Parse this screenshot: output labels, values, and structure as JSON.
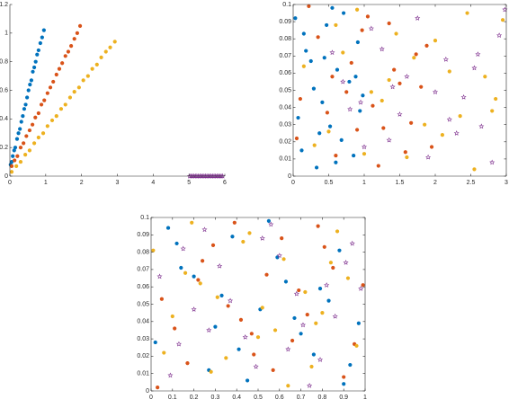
{
  "chart_data": [
    {
      "type": "scatter",
      "box": false,
      "xlim": [
        0,
        6
      ],
      "ylim": [
        0,
        1.2
      ],
      "xticks": [
        0,
        1,
        2,
        3,
        4,
        5,
        6
      ],
      "yticks": [
        0,
        0.2,
        0.4,
        0.6,
        0.8,
        1,
        1.2
      ],
      "series": [
        {
          "color": "#0072bd",
          "marker": "o",
          "x": [
            0.02,
            0.05,
            0.08,
            0.12,
            0.15,
            0.2,
            0.24,
            0.28,
            0.32,
            0.36,
            0.4,
            0.44,
            0.48,
            0.52,
            0.56,
            0.6,
            0.64,
            0.68,
            0.72,
            0.76,
            0.8,
            0.85,
            0.9,
            0.95
          ],
          "values": [
            0.08,
            0.1,
            0.14,
            0.18,
            0.2,
            0.26,
            0.3,
            0.33,
            0.38,
            0.42,
            0.47,
            0.5,
            0.55,
            0.6,
            0.64,
            0.67,
            0.73,
            0.76,
            0.8,
            0.85,
            0.88,
            0.93,
            0.97,
            1.02
          ]
        },
        {
          "color": "#d95319",
          "marker": "o",
          "x": [
            0.05,
            0.13,
            0.21,
            0.3,
            0.38,
            0.46,
            0.55,
            0.63,
            0.71,
            0.8,
            0.88,
            0.96,
            1.05,
            1.13,
            1.21,
            1.3,
            1.38,
            1.46,
            1.55,
            1.63,
            1.71,
            1.8,
            1.88,
            1.96
          ],
          "values": [
            0.07,
            0.11,
            0.14,
            0.2,
            0.23,
            0.28,
            0.32,
            0.36,
            0.41,
            0.44,
            0.5,
            0.53,
            0.58,
            0.62,
            0.66,
            0.71,
            0.75,
            0.79,
            0.84,
            0.87,
            0.91,
            0.96,
            1.0,
            1.05
          ]
        },
        {
          "color": "#edb120",
          "marker": "o",
          "x": [
            0.05,
            0.18,
            0.3,
            0.43,
            0.55,
            0.68,
            0.8,
            0.93,
            1.05,
            1.18,
            1.3,
            1.43,
            1.55,
            1.68,
            1.8,
            1.93,
            2.05,
            2.18,
            2.3,
            2.43,
            2.55,
            2.68,
            2.8,
            2.93
          ],
          "values": [
            0.03,
            0.07,
            0.1,
            0.15,
            0.18,
            0.23,
            0.27,
            0.3,
            0.35,
            0.39,
            0.42,
            0.47,
            0.5,
            0.55,
            0.59,
            0.62,
            0.67,
            0.7,
            0.75,
            0.78,
            0.83,
            0.87,
            0.9,
            0.94
          ]
        },
        {
          "color": "#7e2f8e",
          "marker": "*",
          "x": [
            5.02,
            5.06,
            5.1,
            5.14,
            5.18,
            5.22,
            5.26,
            5.3,
            5.34,
            5.38,
            5.42,
            5.46,
            5.5,
            5.54,
            5.58,
            5.62,
            5.66,
            5.7,
            5.74,
            5.78,
            5.82,
            5.86,
            5.9,
            5.94
          ],
          "values": [
            0,
            0,
            0,
            0,
            0,
            0,
            0,
            0,
            0,
            0,
            0,
            0,
            0,
            0,
            0,
            0,
            0,
            0,
            0,
            0,
            0,
            0,
            0,
            0
          ]
        }
      ]
    },
    {
      "type": "scatter",
      "box": true,
      "xlim": [
        0,
        3
      ],
      "ylim": [
        0,
        0.1
      ],
      "xticks": [
        0,
        0.5,
        1,
        1.5,
        2,
        2.5,
        3
      ],
      "yticks": [
        0,
        0.01,
        0.02,
        0.03,
        0.04,
        0.05,
        0.06,
        0.07,
        0.08,
        0.09,
        0.1
      ],
      "series": [
        {
          "color": "#0072bd",
          "marker": "o",
          "x": [
            0.03,
            0.12,
            0.25,
            0.41,
            0.55,
            0.68,
            0.79,
            0.91,
            0.07,
            0.33,
            0.47,
            0.62,
            0.85,
            0.98,
            0.18,
            0.52,
            0.71,
            0.29,
            0.94,
            0.44,
            0.6,
            0.15,
            0.88,
            0.37
          ],
          "values": [
            0.092,
            0.015,
            0.067,
            0.043,
            0.098,
            0.021,
            0.055,
            0.078,
            0.034,
            0.005,
            0.088,
            0.062,
            0.012,
            0.047,
            0.073,
            0.029,
            0.095,
            0.051,
            0.038,
            0.069,
            0.008,
            0.083,
            0.058,
            0.025
          ]
        },
        {
          "color": "#d95319",
          "marker": "o",
          "x": [
            0.1,
            0.35,
            0.6,
            0.82,
            1.05,
            1.27,
            1.5,
            1.73,
            1.95,
            0.22,
            0.48,
            0.75,
            0.97,
            1.2,
            1.42,
            1.66,
            1.88,
            0.05,
            0.55,
            1.12,
            1.35,
            1.58,
            0.9,
            1.8
          ],
          "values": [
            0.045,
            0.081,
            0.012,
            0.066,
            0.093,
            0.028,
            0.054,
            0.071,
            0.017,
            0.099,
            0.037,
            0.049,
            0.085,
            0.006,
            0.062,
            0.031,
            0.076,
            0.022,
            0.058,
            0.041,
            0.089,
            0.014,
            0.027,
            0.052
          ]
        },
        {
          "color": "#edb120",
          "marker": "o",
          "x": [
            0.15,
            0.5,
            0.9,
            1.25,
            1.6,
            2.0,
            2.35,
            2.7,
            2.95,
            0.3,
            0.7,
            1.1,
            1.45,
            1.85,
            2.2,
            2.55,
            2.85,
            0.6,
            1.0,
            1.7,
            2.1,
            2.45,
            2.8,
            1.35
          ],
          "values": [
            0.064,
            0.026,
            0.097,
            0.044,
            0.011,
            0.079,
            0.035,
            0.058,
            0.091,
            0.018,
            0.072,
            0.049,
            0.083,
            0.03,
            0.061,
            0.004,
            0.045,
            0.088,
            0.013,
            0.069,
            0.024,
            0.095,
            0.038,
            0.056
          ]
        },
        {
          "color": "#7e2f8e",
          "marker": "*",
          "x": [
            0.55,
            0.8,
            1.1,
            1.35,
            1.6,
            1.9,
            2.15,
            2.4,
            2.65,
            2.9,
            0.7,
            1.0,
            1.25,
            1.5,
            1.75,
            2.0,
            2.3,
            2.55,
            2.8,
            2.98,
            1.4,
            2.2,
            2.6,
            0.95
          ],
          "values": [
            0.072,
            0.039,
            0.086,
            0.021,
            0.058,
            0.011,
            0.068,
            0.046,
            0.029,
            0.082,
            0.055,
            0.017,
            0.074,
            0.036,
            0.092,
            0.049,
            0.025,
            0.063,
            0.008,
            0.097,
            0.052,
            0.033,
            0.071,
            0.043
          ]
        }
      ]
    },
    {
      "type": "scatter",
      "box": true,
      "xlim": [
        0,
        1
      ],
      "ylim": [
        0,
        0.1
      ],
      "xticks": [
        0,
        0.1,
        0.2,
        0.3,
        0.4,
        0.5,
        0.6,
        0.7,
        0.8,
        0.9,
        1
      ],
      "yticks": [
        0,
        0.01,
        0.02,
        0.03,
        0.04,
        0.05,
        0.06,
        0.07,
        0.08,
        0.09,
        0.1
      ],
      "series": [
        {
          "color": "#0072bd",
          "marker": "o",
          "x": [
            0.02,
            0.14,
            0.27,
            0.38,
            0.51,
            0.63,
            0.76,
            0.88,
            0.97,
            0.08,
            0.33,
            0.45,
            0.59,
            0.7,
            0.83,
            0.93,
            0.2,
            0.55,
            0.67,
            0.41,
            0.12,
            0.79,
            0.9,
            0.3
          ],
          "values": [
            0.028,
            0.071,
            0.012,
            0.089,
            0.047,
            0.063,
            0.021,
            0.081,
            0.039,
            0.094,
            0.055,
            0.006,
            0.077,
            0.033,
            0.052,
            0.015,
            0.066,
            0.098,
            0.042,
            0.024,
            0.085,
            0.059,
            0.004,
            0.037
          ]
        },
        {
          "color": "#d95319",
          "marker": "o",
          "x": [
            0.05,
            0.17,
            0.29,
            0.42,
            0.54,
            0.66,
            0.78,
            0.9,
            0.99,
            0.11,
            0.24,
            0.36,
            0.48,
            0.61,
            0.73,
            0.85,
            0.95,
            0.39,
            0.57,
            0.69,
            0.81,
            0.22,
            0.47,
            0.03
          ],
          "values": [
            0.053,
            0.016,
            0.084,
            0.041,
            0.067,
            0.029,
            0.095,
            0.008,
            0.061,
            0.036,
            0.075,
            0.049,
            0.021,
            0.088,
            0.044,
            0.071,
            0.027,
            0.097,
            0.012,
            0.058,
            0.083,
            0.064,
            0.033,
            0.002
          ]
        },
        {
          "color": "#edb120",
          "marker": "o",
          "x": [
            0.01,
            0.1,
            0.23,
            0.35,
            0.46,
            0.58,
            0.72,
            0.84,
            0.96,
            0.16,
            0.28,
            0.43,
            0.52,
            0.64,
            0.77,
            0.87,
            0.06,
            0.31,
            0.62,
            0.75,
            0.92,
            0.5,
            0.19,
            0.8
          ],
          "values": [
            0.081,
            0.043,
            0.062,
            0.019,
            0.091,
            0.035,
            0.057,
            0.074,
            0.026,
            0.068,
            0.011,
            0.086,
            0.048,
            0.003,
            0.039,
            0.092,
            0.022,
            0.054,
            0.076,
            0.014,
            0.065,
            0.031,
            0.097,
            0.045
          ]
        },
        {
          "color": "#7e2f8e",
          "marker": "*",
          "x": [
            0.04,
            0.13,
            0.25,
            0.37,
            0.49,
            0.6,
            0.71,
            0.82,
            0.94,
            0.09,
            0.2,
            0.32,
            0.44,
            0.56,
            0.68,
            0.79,
            0.91,
            0.27,
            0.52,
            0.74,
            0.98,
            0.15,
            0.64,
            0.86
          ],
          "values": [
            0.066,
            0.027,
            0.093,
            0.052,
            0.014,
            0.078,
            0.038,
            0.061,
            0.085,
            0.009,
            0.047,
            0.072,
            0.031,
            0.096,
            0.056,
            0.018,
            0.074,
            0.035,
            0.088,
            0.003,
            0.059,
            0.082,
            0.024,
            0.043
          ]
        }
      ]
    }
  ]
}
